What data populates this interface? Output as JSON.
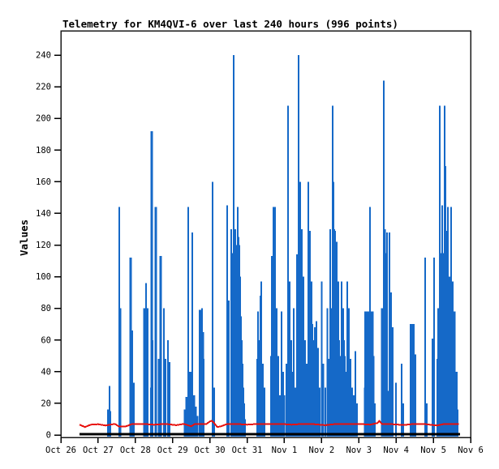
{
  "chart_data": {
    "type": "line",
    "title": "Telemetry for KM4QVI-6 over last 240 hours (996 points)",
    "ylabel": "Values",
    "xlabel": "",
    "ylim": [
      0,
      255
    ],
    "yticks": [
      0,
      20,
      40,
      60,
      80,
      100,
      120,
      140,
      160,
      180,
      200,
      220,
      240
    ],
    "xtick_labels": [
      "Oct 26",
      "Oct 27",
      "Oct 28",
      "Oct 29",
      "Oct 30",
      "Oct 31",
      "Nov 1",
      "Nov 2",
      "Nov 3",
      "Nov 4",
      "Nov 5",
      "Nov 6"
    ],
    "x_range_days": [
      0,
      11
    ],
    "grid": false,
    "legend": "none",
    "frame_color": "#1a1a1a",
    "series": [
      {
        "name": "telemetry-channel-blue",
        "style": "spikes",
        "color": "#1569c8",
        "baseline": 0,
        "points": [
          [
            1.263,
            16,
            2
          ],
          [
            1.307,
            31,
            2
          ],
          [
            1.31,
            15,
            4
          ],
          [
            1.568,
            144,
            2
          ],
          [
            1.59,
            80,
            3
          ],
          [
            1.873,
            112,
            3
          ],
          [
            1.917,
            66,
            2
          ],
          [
            1.96,
            33,
            2
          ],
          [
            2.244,
            80,
            3
          ],
          [
            2.29,
            96,
            2
          ],
          [
            2.33,
            80,
            2
          ],
          [
            2.42,
            30,
            2
          ],
          [
            2.44,
            192,
            3
          ],
          [
            2.46,
            60,
            2
          ],
          [
            2.548,
            144,
            3
          ],
          [
            2.63,
            48,
            2
          ],
          [
            2.679,
            113,
            3
          ],
          [
            2.766,
            80,
            2
          ],
          [
            2.81,
            48,
            2
          ],
          [
            2.875,
            60,
            2
          ],
          [
            2.919,
            46,
            2
          ],
          [
            3.33,
            16,
            3
          ],
          [
            3.376,
            24,
            3
          ],
          [
            3.42,
            144,
            2
          ],
          [
            3.44,
            40,
            3
          ],
          [
            3.463,
            30,
            3
          ],
          [
            3.507,
            40,
            3
          ],
          [
            3.529,
            128,
            2
          ],
          [
            3.572,
            25,
            3
          ],
          [
            3.616,
            18,
            3
          ],
          [
            3.66,
            12,
            3
          ],
          [
            3.747,
            79,
            4
          ],
          [
            3.79,
            80,
            2
          ],
          [
            3.812,
            65,
            3
          ],
          [
            3.834,
            48,
            2
          ],
          [
            4.073,
            160,
            2
          ],
          [
            4.1,
            20,
            2
          ],
          [
            4.117,
            30,
            2
          ],
          [
            4.465,
            145,
            2
          ],
          [
            4.51,
            85,
            2
          ],
          [
            4.574,
            130,
            2
          ],
          [
            4.6,
            112,
            2
          ],
          [
            4.618,
            115,
            2
          ],
          [
            4.64,
            240,
            2
          ],
          [
            4.66,
            110,
            2
          ],
          [
            4.683,
            130,
            2
          ],
          [
            4.705,
            120,
            2
          ],
          [
            4.748,
            144,
            2
          ],
          [
            4.77,
            125,
            2
          ],
          [
            4.792,
            120,
            2
          ],
          [
            4.814,
            100,
            2
          ],
          [
            4.836,
            75,
            2
          ],
          [
            4.858,
            60,
            2
          ],
          [
            4.879,
            45,
            2
          ],
          [
            4.9,
            30,
            2
          ],
          [
            4.92,
            20,
            2
          ],
          [
            4.945,
            10,
            2
          ],
          [
            5.27,
            48,
            2
          ],
          [
            5.293,
            78,
            2
          ],
          [
            5.315,
            55,
            2
          ],
          [
            5.337,
            60,
            2
          ],
          [
            5.36,
            88,
            2
          ],
          [
            5.38,
            97,
            2
          ],
          [
            5.424,
            45,
            2
          ],
          [
            5.467,
            30,
            2
          ],
          [
            5.64,
            50,
            2
          ],
          [
            5.663,
            113,
            2
          ],
          [
            5.707,
            144,
            2
          ],
          [
            5.75,
            144,
            2
          ],
          [
            5.794,
            80,
            2
          ],
          [
            5.837,
            50,
            2
          ],
          [
            5.881,
            25,
            2
          ],
          [
            5.925,
            78,
            2
          ],
          [
            5.968,
            40,
            2
          ],
          [
            6.0,
            25,
            2
          ],
          [
            6.05,
            45,
            2
          ],
          [
            6.099,
            208,
            2
          ],
          [
            6.142,
            97,
            2
          ],
          [
            6.186,
            60,
            2
          ],
          [
            6.229,
            40,
            2
          ],
          [
            6.25,
            80,
            2
          ],
          [
            6.295,
            30,
            2
          ],
          [
            6.338,
            114,
            2
          ],
          [
            6.36,
            70,
            2
          ],
          [
            6.382,
            240,
            2
          ],
          [
            6.405,
            130,
            2
          ],
          [
            6.425,
            160,
            2
          ],
          [
            6.447,
            100,
            2
          ],
          [
            6.469,
            130,
            2
          ],
          [
            6.512,
            100,
            2
          ],
          [
            6.535,
            48,
            2
          ],
          [
            6.556,
            60,
            2
          ],
          [
            6.6,
            45,
            2
          ],
          [
            6.62,
            20,
            2
          ],
          [
            6.643,
            160,
            2
          ],
          [
            6.665,
            110,
            2
          ],
          [
            6.687,
            129,
            2
          ],
          [
            6.73,
            97,
            2
          ],
          [
            6.752,
            70,
            2
          ],
          [
            6.774,
            60,
            2
          ],
          [
            6.817,
            68,
            2
          ],
          [
            6.861,
            72,
            2
          ],
          [
            6.904,
            55,
            2
          ],
          [
            6.95,
            30,
            2
          ],
          [
            7.0,
            97,
            2
          ],
          [
            7.05,
            45,
            2
          ],
          [
            7.1,
            30,
            2
          ],
          [
            7.15,
            80,
            2
          ],
          [
            7.188,
            48,
            2
          ],
          [
            7.231,
            130,
            2
          ],
          [
            7.275,
            80,
            2
          ],
          [
            7.297,
            208,
            2
          ],
          [
            7.32,
            160,
            2
          ],
          [
            7.34,
            130,
            2
          ],
          [
            7.362,
            129,
            2
          ],
          [
            7.406,
            122,
            2
          ],
          [
            7.449,
            97,
            2
          ],
          [
            7.47,
            60,
            2
          ],
          [
            7.493,
            50,
            2
          ],
          [
            7.536,
            97,
            2
          ],
          [
            7.58,
            80,
            2
          ],
          [
            7.6,
            60,
            2
          ],
          [
            7.623,
            50,
            2
          ],
          [
            7.667,
            40,
            2
          ],
          [
            7.688,
            97,
            2
          ],
          [
            7.732,
            80,
            2
          ],
          [
            7.775,
            48,
            2
          ],
          [
            7.819,
            30,
            2
          ],
          [
            7.862,
            25,
            2
          ],
          [
            7.906,
            53,
            2
          ],
          [
            7.95,
            20,
            2
          ],
          [
            8.168,
            30,
            3
          ],
          [
            8.19,
            78,
            4
          ],
          [
            8.233,
            78,
            4
          ],
          [
            8.276,
            78,
            4
          ],
          [
            8.3,
            144,
            2
          ],
          [
            8.32,
            78,
            3
          ],
          [
            8.36,
            78,
            3
          ],
          [
            8.385,
            50,
            3
          ],
          [
            8.43,
            20,
            2
          ],
          [
            8.63,
            80,
            3
          ],
          [
            8.669,
            224,
            2
          ],
          [
            8.69,
            130,
            3
          ],
          [
            8.712,
            115,
            2
          ],
          [
            8.756,
            128,
            2
          ],
          [
            8.79,
            28,
            2
          ],
          [
            8.821,
            128,
            2
          ],
          [
            8.865,
            90,
            2
          ],
          [
            8.908,
            68,
            2
          ],
          [
            9.0,
            33,
            2
          ],
          [
            9.148,
            45,
            2
          ],
          [
            9.191,
            20,
            2
          ],
          [
            9.409,
            70,
            4
          ],
          [
            9.452,
            70,
            4
          ],
          [
            9.474,
            64,
            2
          ],
          [
            9.518,
            51,
            2
          ],
          [
            9.779,
            112,
            2
          ],
          [
            9.823,
            20,
            2
          ],
          [
            9.975,
            61,
            2
          ],
          [
            10.019,
            112,
            2
          ],
          [
            10.105,
            48,
            2
          ],
          [
            10.128,
            80,
            2
          ],
          [
            10.172,
            208,
            2
          ],
          [
            10.215,
            115,
            4
          ],
          [
            10.237,
            145,
            2
          ],
          [
            10.259,
            115,
            3
          ],
          [
            10.302,
            208,
            2
          ],
          [
            10.324,
            170,
            2
          ],
          [
            10.346,
            129,
            2
          ],
          [
            10.389,
            144,
            2
          ],
          [
            10.433,
            100,
            2
          ],
          [
            10.476,
            144,
            2
          ],
          [
            10.52,
            97,
            2
          ],
          [
            10.563,
            78,
            3
          ],
          [
            10.607,
            40,
            4
          ],
          [
            10.65,
            16,
            2
          ]
        ]
      },
      {
        "name": "telemetry-channel-red",
        "style": "line",
        "color": "#e8100c",
        "stroke_width": 2,
        "points": [
          [
            0.5,
            6.5
          ],
          [
            0.65,
            5
          ],
          [
            0.8,
            6.5
          ],
          [
            1.0,
            6.8
          ],
          [
            1.2,
            6.0
          ],
          [
            1.45,
            7
          ],
          [
            1.55,
            5.5
          ],
          [
            1.75,
            5.5
          ],
          [
            1.9,
            6.8
          ],
          [
            2.2,
            7
          ],
          [
            2.5,
            6.5
          ],
          [
            2.8,
            7
          ],
          [
            3.1,
            6.2
          ],
          [
            3.3,
            7
          ],
          [
            3.5,
            5.5
          ],
          [
            3.6,
            7
          ],
          [
            3.9,
            6.8
          ],
          [
            4.0,
            8.5
          ],
          [
            4.05,
            9
          ],
          [
            4.1,
            8
          ],
          [
            4.2,
            5
          ],
          [
            4.3,
            5.5
          ],
          [
            4.45,
            6.8
          ],
          [
            4.7,
            7
          ],
          [
            5.0,
            6.5
          ],
          [
            5.3,
            7
          ],
          [
            5.6,
            6.8
          ],
          [
            5.9,
            7
          ],
          [
            6.2,
            6.5
          ],
          [
            6.5,
            7
          ],
          [
            6.8,
            6.8
          ],
          [
            7.1,
            6.2
          ],
          [
            7.4,
            7
          ],
          [
            7.7,
            6.8
          ],
          [
            8.0,
            7
          ],
          [
            8.3,
            6.5
          ],
          [
            8.5,
            7.5
          ],
          [
            8.55,
            8.8
          ],
          [
            8.62,
            7
          ],
          [
            8.9,
            6.8
          ],
          [
            9.2,
            6.3
          ],
          [
            9.5,
            7
          ],
          [
            9.8,
            6.8
          ],
          [
            10.1,
            6
          ],
          [
            10.3,
            7
          ],
          [
            10.5,
            6.8
          ],
          [
            10.68,
            7
          ]
        ]
      },
      {
        "name": "telemetry-channel-black",
        "style": "line",
        "color": "#000000",
        "stroke_width": 3,
        "points": [
          [
            0.5,
            0.5
          ],
          [
            10.72,
            0.5
          ]
        ]
      }
    ]
  }
}
